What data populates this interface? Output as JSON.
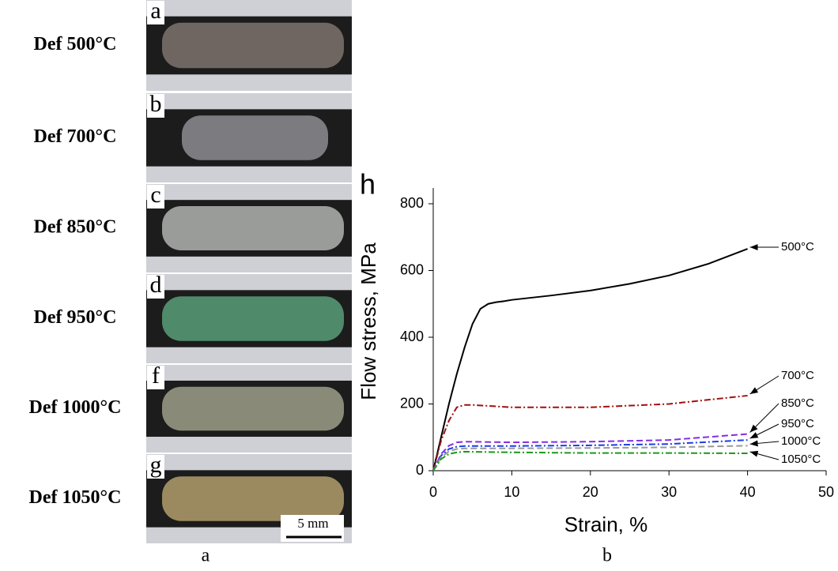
{
  "figure": {
    "panels": [
      {
        "letter": "a",
        "label": "Def 500°C"
      },
      {
        "letter": "b",
        "label": "Def 700°C"
      },
      {
        "letter": "c",
        "label": "Def 850°C"
      },
      {
        "letter": "d",
        "label": "Def 950°C"
      },
      {
        "letter": "f",
        "label": "Def 1000°C"
      },
      {
        "letter": "g",
        "label": "Def 1050°C"
      }
    ],
    "scale_bar": "5 mm",
    "captions": [
      "a",
      "b"
    ]
  },
  "chart_data": {
    "type": "line",
    "panel_label": "h",
    "x_label": "Strain, %",
    "y_label": "Flow stress, MPa",
    "xlim": [
      0,
      50
    ],
    "xticks": [
      0,
      10,
      20,
      30,
      40,
      50
    ],
    "ylim": [
      0,
      800
    ],
    "yticks": [
      0,
      200,
      400,
      600,
      800
    ],
    "series": [
      {
        "name": "500°C",
        "color": "#000000",
        "dash": "",
        "x": [
          0,
          1,
          2,
          3,
          4,
          5,
          6,
          7,
          8,
          9,
          10,
          15,
          20,
          25,
          30,
          35,
          40
        ],
        "values": [
          0,
          100,
          200,
          290,
          370,
          440,
          485,
          500,
          505,
          508,
          512,
          525,
          540,
          560,
          585,
          620,
          665
        ]
      },
      {
        "name": "700°C",
        "color": "#a01010",
        "dash": "8 3 2 3",
        "x": [
          0,
          1,
          2,
          3,
          4,
          5,
          10,
          20,
          30,
          40
        ],
        "values": [
          0,
          90,
          150,
          190,
          197,
          197,
          190,
          190,
          200,
          225
        ]
      },
      {
        "name": "850°C",
        "color": "#8a2be2",
        "dash": "8 4",
        "x": [
          0,
          1,
          2,
          3,
          4,
          10,
          20,
          30,
          40
        ],
        "values": [
          0,
          50,
          75,
          85,
          87,
          85,
          87,
          92,
          110
        ]
      },
      {
        "name": "950°C",
        "color": "#1a3ee0",
        "dash": "8 3 2 3",
        "x": [
          0,
          1,
          2,
          3,
          4,
          10,
          20,
          30,
          40
        ],
        "values": [
          0,
          45,
          65,
          72,
          74,
          74,
          76,
          80,
          92
        ]
      },
      {
        "name": "1000°C",
        "color": "#999999",
        "dash": "8 4",
        "x": [
          0,
          1,
          2,
          3,
          4,
          10,
          20,
          30,
          40
        ],
        "values": [
          0,
          40,
          58,
          65,
          67,
          67,
          68,
          70,
          75
        ]
      },
      {
        "name": "1050°C",
        "color": "#1a9a1a",
        "dash": "8 3 2 3",
        "x": [
          0,
          1,
          2,
          3,
          4,
          10,
          20,
          30,
          40
        ],
        "values": [
          0,
          35,
          50,
          55,
          57,
          55,
          53,
          53,
          52
        ]
      }
    ]
  }
}
